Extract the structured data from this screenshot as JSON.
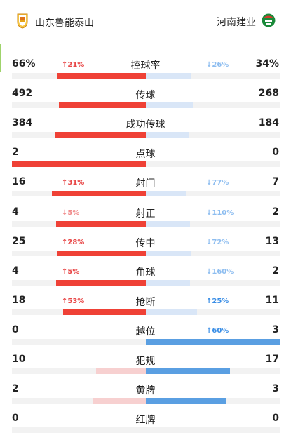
{
  "home_team": {
    "name": "山东鲁能泰山",
    "badge_color": "#e6a417"
  },
  "away_team": {
    "name": "河南建业",
    "badge_color": "#1a8a3a"
  },
  "colors": {
    "home_strong": "#ef4136",
    "home_light": "#f7d0d0",
    "away_strong": "#5a9fe2",
    "away_light": "#d9e6f7",
    "change_red": "#e84747",
    "change_blue": "#3a8ee6"
  },
  "stats": [
    {
      "label": "控球率",
      "home": "66%",
      "away": "34%",
      "home_share": 0.66,
      "away_share": 0.34,
      "home_leads": true,
      "home_change": "↑21%",
      "away_change": "↓26%"
    },
    {
      "label": "传球",
      "home": "492",
      "away": "268",
      "home_share": 0.65,
      "away_share": 0.35,
      "home_leads": true,
      "home_change": "",
      "away_change": ""
    },
    {
      "label": "成功传球",
      "home": "384",
      "away": "184",
      "home_share": 0.68,
      "away_share": 0.32,
      "home_leads": true,
      "home_change": "",
      "away_change": ""
    },
    {
      "label": "点球",
      "home": "2",
      "away": "0",
      "home_share": 1.0,
      "away_share": 0.0,
      "home_leads": true,
      "home_change": "",
      "away_change": ""
    },
    {
      "label": "射门",
      "home": "16",
      "away": "7",
      "home_share": 0.7,
      "away_share": 0.3,
      "home_leads": true,
      "home_change": "↑31%",
      "away_change": "↓77%"
    },
    {
      "label": "射正",
      "home": "4",
      "away": "2",
      "home_share": 0.67,
      "away_share": 0.33,
      "home_leads": true,
      "home_change": "↓5%",
      "away_change": "↓110%"
    },
    {
      "label": "传中",
      "home": "25",
      "away": "13",
      "home_share": 0.66,
      "away_share": 0.34,
      "home_leads": true,
      "home_change": "↑28%",
      "away_change": "↓72%"
    },
    {
      "label": "角球",
      "home": "4",
      "away": "2",
      "home_share": 0.67,
      "away_share": 0.33,
      "home_leads": true,
      "home_change": "↑5%",
      "away_change": "↓160%"
    },
    {
      "label": "抢断",
      "home": "18",
      "away": "11",
      "home_share": 0.62,
      "away_share": 0.38,
      "home_leads": true,
      "home_change": "↑53%",
      "away_change": "↑25%"
    },
    {
      "label": "越位",
      "home": "0",
      "away": "3",
      "home_share": 0.0,
      "away_share": 1.0,
      "home_leads": false,
      "home_change": "",
      "away_change": "↑60%"
    },
    {
      "label": "犯规",
      "home": "10",
      "away": "17",
      "home_share": 0.37,
      "away_share": 0.63,
      "home_leads": false,
      "home_change": "",
      "away_change": ""
    },
    {
      "label": "黄牌",
      "home": "2",
      "away": "3",
      "home_share": 0.4,
      "away_share": 0.6,
      "home_leads": false,
      "home_change": "",
      "away_change": ""
    },
    {
      "label": "红牌",
      "home": "0",
      "away": "0",
      "home_share": 0.0,
      "away_share": 0.0,
      "home_leads": false,
      "home_change": "",
      "away_change": ""
    }
  ]
}
